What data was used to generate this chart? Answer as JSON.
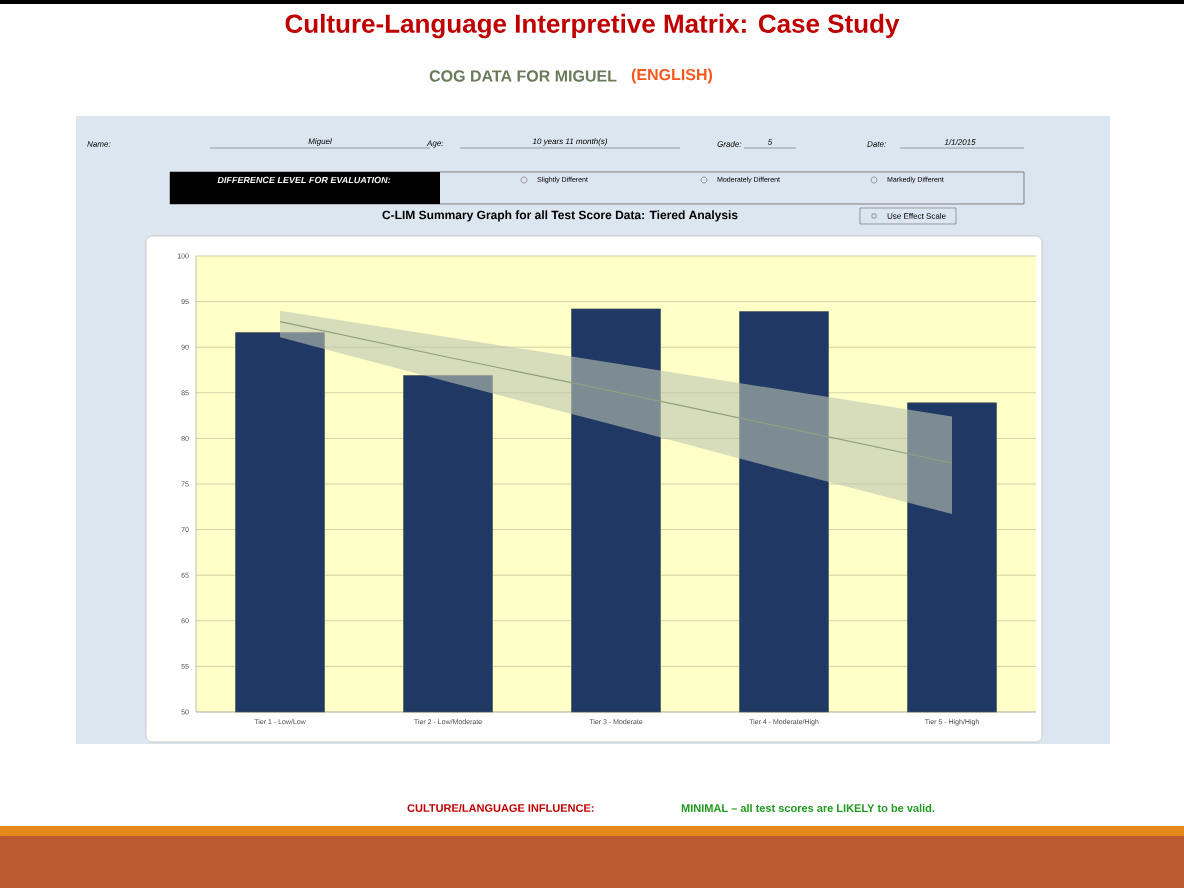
{
  "chart_data": {
    "type": "bar",
    "title": "Culture-Language Interpretive Matrix: Case Study",
    "subtitle": "COG DATA FOR MIGUEL",
    "categories": [
      "Tier 1 - Low/Low",
      "Tier 2 - Low/Moderate",
      "Tier 3 - Moderate",
      "Tier 4 - Moderate/High",
      "Tier 5 - High/High"
    ],
    "series": [
      {
        "color": "#1f3864",
        "values": [
          91.6,
          86.9,
          94.2,
          93.9,
          83.9
        ]
      },
      {
        "type": "line",
        "color": "#8f9f80",
        "values": [
          92.8,
          88.9,
          85.1,
          81.2,
          77.3
        ],
        "lower": [
          91.1,
          86.2,
          81.4,
          76.5,
          71.7
        ],
        "upper": [
          94.0,
          91.1,
          88.2,
          85.3,
          82.4
        ]
      }
    ],
    "ylim": [
      50,
      100
    ],
    "yticks": [
      50,
      55,
      60,
      65,
      70,
      75,
      80,
      85,
      90,
      95,
      100
    ],
    "grid": "y",
    "annotations": [
      "(ENGLISH)",
      "Name:",
      "Miguel",
      "Age:",
      "10 years 11 month(s)",
      "Grade:",
      "5",
      "Date:",
      "1/1/2015",
      "DIFFERENCE LEVEL FOR EVALUATION:",
      "Slightly Different",
      "Moderately Different",
      "Markedly Different",
      "C-LIM Summary Graph for all Test Score Data: Tiered Analysis",
      "Use Effect Scale",
      "CULTURE/LANGUAGE INFLUENCE:",
      "MINIMAL – all test scores are LIKELY to be valid."
    ]
  }
}
